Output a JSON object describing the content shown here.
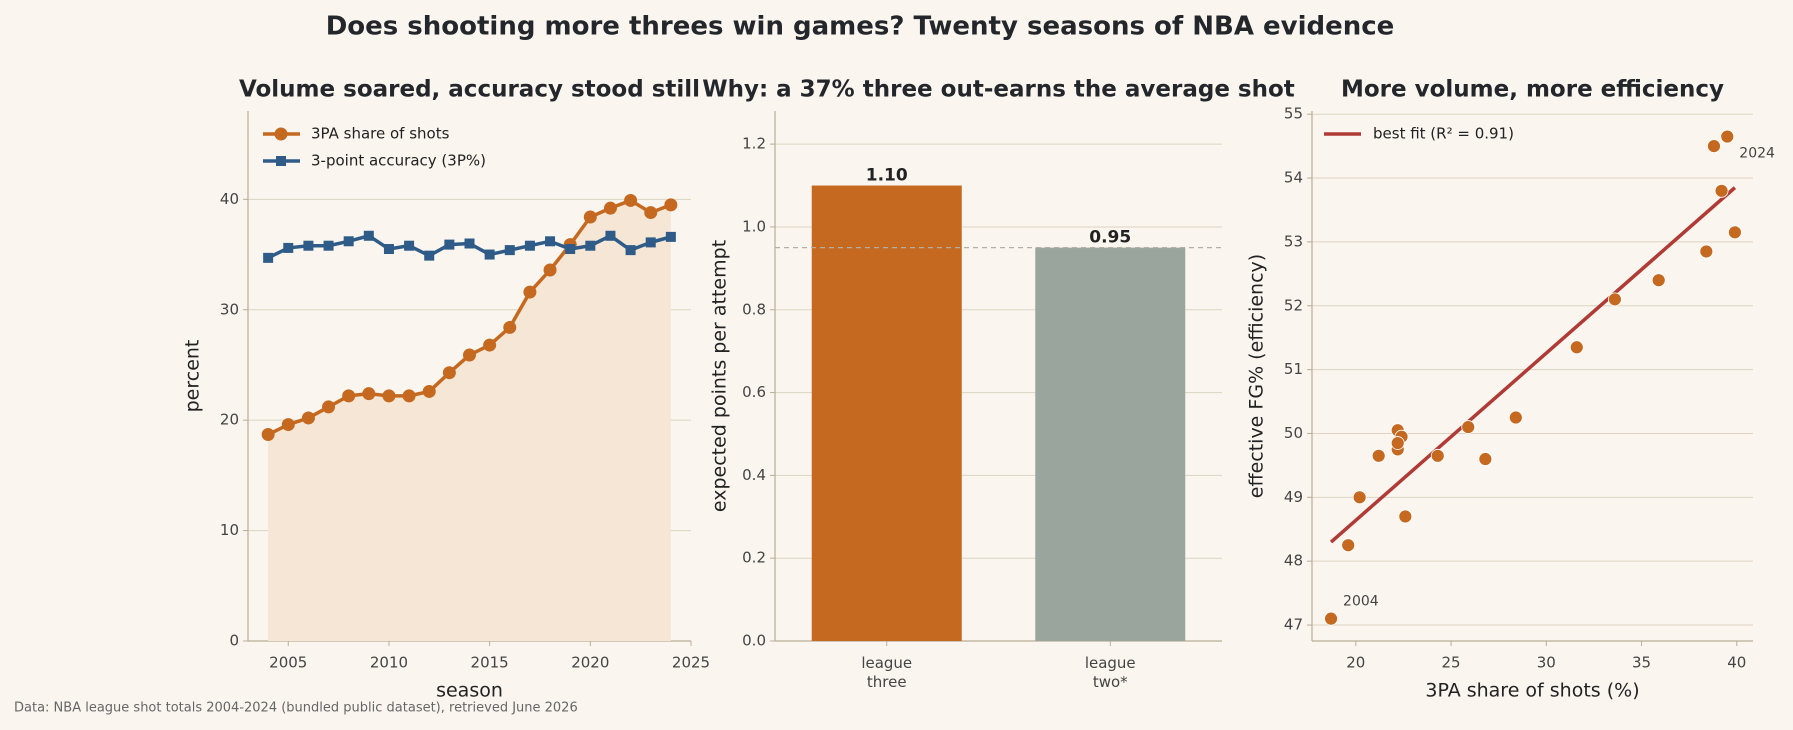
{
  "title": "Does shooting more threes win games? Twenty seasons of NBA evidence",
  "source": "Data: NBA league shot totals 2004-2024 (bundled public dataset), retrieved June 2026",
  "chart_data": [
    {
      "type": "line",
      "title": "Volume soared, accuracy stood still",
      "xlabel": "season",
      "ylabel": "percent",
      "x": [
        2004,
        2005,
        2006,
        2007,
        2008,
        2009,
        2010,
        2011,
        2012,
        2013,
        2014,
        2015,
        2016,
        2017,
        2018,
        2019,
        2020,
        2021,
        2022,
        2023,
        2024
      ],
      "series": [
        {
          "name": "3PA share of shots",
          "color": "#c4691f",
          "marker": "circle",
          "fill": "#f5e6d6",
          "values": [
            18.7,
            19.6,
            20.2,
            21.2,
            22.2,
            22.4,
            22.2,
            22.2,
            22.6,
            24.3,
            25.9,
            26.8,
            28.4,
            31.6,
            33.6,
            35.9,
            38.4,
            39.2,
            39.9,
            38.8,
            39.5
          ]
        },
        {
          "name": "3-point accuracy (3P%)",
          "color": "#2e5b87",
          "marker": "square",
          "values": [
            34.7,
            35.6,
            35.8,
            35.8,
            36.2,
            36.7,
            35.5,
            35.8,
            34.9,
            35.9,
            36.0,
            35.0,
            35.4,
            35.8,
            36.2,
            35.5,
            35.8,
            36.7,
            35.4,
            36.1,
            36.6
          ]
        }
      ],
      "xlim": [
        2003,
        2025
      ],
      "xticks": [
        2005,
        2010,
        2015,
        2020,
        2025
      ],
      "ylim": [
        0,
        48
      ],
      "yticks": [
        0,
        10,
        20,
        30,
        40
      ],
      "grid": true,
      "legend": "upper left"
    },
    {
      "type": "bar",
      "title": "Why: a 37% three out-earns the average shot",
      "ylabel": "expected points per attempt",
      "categories": [
        "league\nthree",
        "league\ntwo*"
      ],
      "values": [
        1.1,
        0.95
      ],
      "value_labels": [
        "1.10",
        "0.95"
      ],
      "colors": [
        "#c4691f",
        "#9aa59e"
      ],
      "hline": 0.95,
      "ylim": [
        0,
        1.28
      ],
      "yticks": [
        {
          "value": 0,
          "label": "0.0"
        },
        0.2,
        0.4,
        0.6,
        0.8,
        {
          "value": 1,
          "label": "1.0"
        },
        1.2
      ],
      "grid": true
    },
    {
      "type": "scatter",
      "title": "More volume, more efficiency",
      "xlabel": "3PA share of shots (%)",
      "ylabel": "effective FG% (efficiency)",
      "x": [
        18.7,
        19.6,
        20.2,
        21.2,
        22.2,
        22.4,
        22.2,
        22.2,
        22.6,
        24.3,
        25.9,
        26.8,
        28.4,
        31.6,
        33.6,
        35.9,
        38.4,
        39.2,
        39.9,
        38.8,
        39.5
      ],
      "y": [
        47.1,
        48.25,
        49.0,
        49.65,
        50.05,
        49.95,
        49.75,
        49.85,
        48.7,
        49.65,
        50.1,
        49.6,
        50.25,
        51.35,
        52.1,
        52.4,
        52.85,
        53.8,
        53.15,
        54.5,
        54.65
      ],
      "color": "#c4691f",
      "fit": {
        "name": "best fit  (R² = 0.91)",
        "color": "#b03a35",
        "x": [
          18.7,
          39.9
        ],
        "y": [
          48.3,
          53.85
        ]
      },
      "annotations": [
        {
          "text": "2004",
          "x": 18.7,
          "y": 47.1
        },
        {
          "text": "2024",
          "x": 39.5,
          "y": 54.65
        }
      ],
      "xlim": [
        17.7,
        40.85
      ],
      "xticks": [
        20,
        25,
        30,
        35,
        40
      ],
      "ylim": [
        46.75,
        55.05
      ],
      "yticks": [
        47,
        48,
        49,
        50,
        51,
        52,
        53,
        54,
        55
      ],
      "grid": true,
      "legend": "upper left"
    }
  ]
}
